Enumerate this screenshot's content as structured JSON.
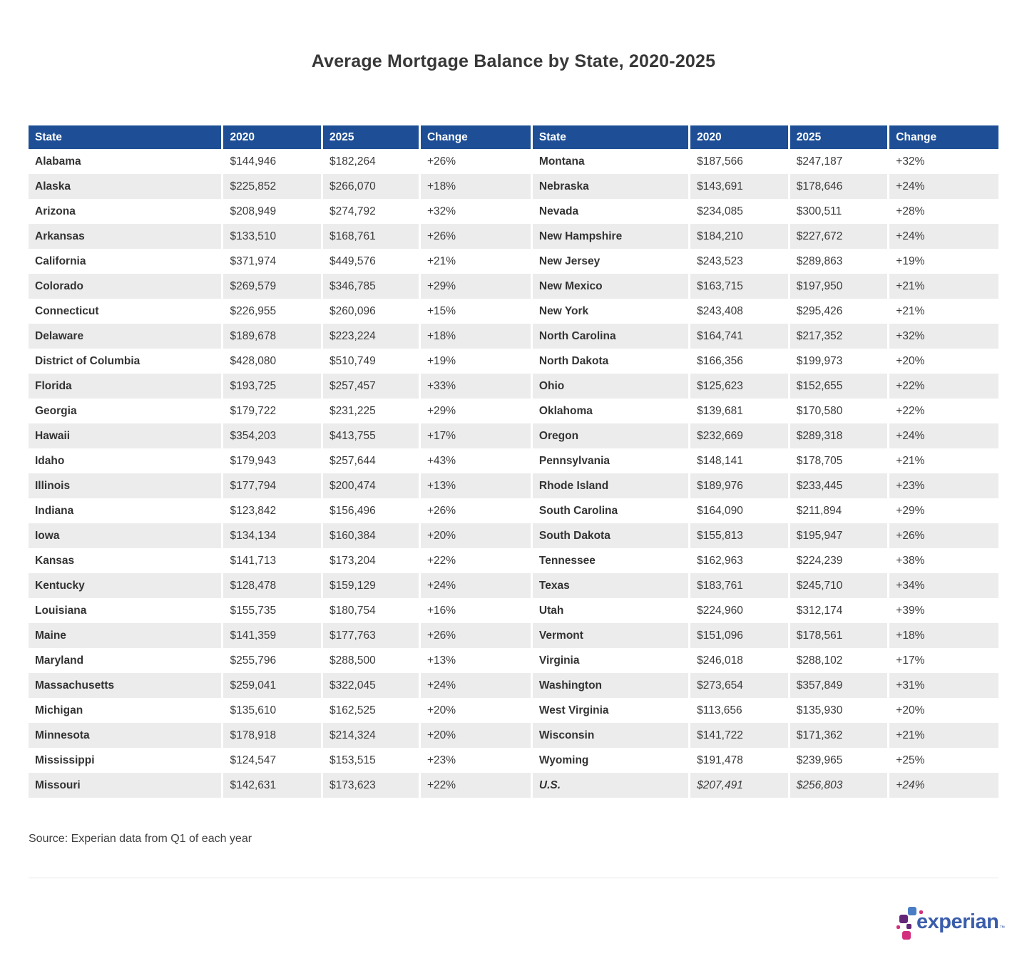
{
  "page_title": "Average Mortgage Balance by State, 2020-2025",
  "source_note": "Source: Experian data from Q1 of each year",
  "emphasis_row": "U.S.",
  "logo": {
    "wordmark": "experian",
    "trademark": "™"
  },
  "colors": {
    "header_blue": "#1e4f96",
    "stripe_gray": "#ececec",
    "text_dark": "#333333",
    "divider_gray": "#e7e7e7",
    "logo_word_blue": "#3a5dab",
    "logo_light_blue": "#4a7dc4",
    "logo_purple": "#632678",
    "logo_magenta": "#d2307c"
  },
  "chart_data": {
    "type": "table",
    "title": "Average Mortgage Balance by State, 2020-2025",
    "columns": [
      "State",
      "2020",
      "2025",
      "Change"
    ],
    "layout": "two side-by-side column groups, 26 rows each, alternating white/gray row stripes, blue header row",
    "value_format": "USD with thousands separators; Change as signed percent",
    "rows": [
      [
        "Alabama",
        144946,
        182264,
        "+26%"
      ],
      [
        "Alaska",
        225852,
        266070,
        "+18%"
      ],
      [
        "Arizona",
        208949,
        274792,
        "+32%"
      ],
      [
        "Arkansas",
        133510,
        168761,
        "+26%"
      ],
      [
        "California",
        371974,
        449576,
        "+21%"
      ],
      [
        "Colorado",
        269579,
        346785,
        "+29%"
      ],
      [
        "Connecticut",
        226955,
        260096,
        "+15%"
      ],
      [
        "Delaware",
        189678,
        223224,
        "+18%"
      ],
      [
        "District of Columbia",
        428080,
        510749,
        "+19%"
      ],
      [
        "Florida",
        193725,
        257457,
        "+33%"
      ],
      [
        "Georgia",
        179722,
        231225,
        "+29%"
      ],
      [
        "Hawaii",
        354203,
        413755,
        "+17%"
      ],
      [
        "Idaho",
        179943,
        257644,
        "+43%"
      ],
      [
        "Illinois",
        177794,
        200474,
        "+13%"
      ],
      [
        "Indiana",
        123842,
        156496,
        "+26%"
      ],
      [
        "Iowa",
        134134,
        160384,
        "+20%"
      ],
      [
        "Kansas",
        141713,
        173204,
        "+22%"
      ],
      [
        "Kentucky",
        128478,
        159129,
        "+24%"
      ],
      [
        "Louisiana",
        155735,
        180754,
        "+16%"
      ],
      [
        "Maine",
        141359,
        177763,
        "+26%"
      ],
      [
        "Maryland",
        255796,
        288500,
        "+13%"
      ],
      [
        "Massachusetts",
        259041,
        322045,
        "+24%"
      ],
      [
        "Michigan",
        135610,
        162525,
        "+20%"
      ],
      [
        "Minnesota",
        178918,
        214324,
        "+20%"
      ],
      [
        "Mississippi",
        124547,
        153515,
        "+23%"
      ],
      [
        "Missouri",
        142631,
        173623,
        "+22%"
      ],
      [
        "Montana",
        187566,
        247187,
        "+32%"
      ],
      [
        "Nebraska",
        143691,
        178646,
        "+24%"
      ],
      [
        "Nevada",
        234085,
        300511,
        "+28%"
      ],
      [
        "New Hampshire",
        184210,
        227672,
        "+24%"
      ],
      [
        "New Jersey",
        243523,
        289863,
        "+19%"
      ],
      [
        "New Mexico",
        163715,
        197950,
        "+21%"
      ],
      [
        "New York",
        243408,
        295426,
        "+21%"
      ],
      [
        "North Carolina",
        164741,
        217352,
        "+32%"
      ],
      [
        "North Dakota",
        166356,
        199973,
        "+20%"
      ],
      [
        "Ohio",
        125623,
        152655,
        "+22%"
      ],
      [
        "Oklahoma",
        139681,
        170580,
        "+22%"
      ],
      [
        "Oregon",
        232669,
        289318,
        "+24%"
      ],
      [
        "Pennsylvania",
        148141,
        178705,
        "+21%"
      ],
      [
        "Rhode Island",
        189976,
        233445,
        "+23%"
      ],
      [
        "South Carolina",
        164090,
        211894,
        "+29%"
      ],
      [
        "South Dakota",
        155813,
        195947,
        "+26%"
      ],
      [
        "Tennessee",
        162963,
        224239,
        "+38%"
      ],
      [
        "Texas",
        183761,
        245710,
        "+34%"
      ],
      [
        "Utah",
        224960,
        312174,
        "+39%"
      ],
      [
        "Vermont",
        151096,
        178561,
        "+18%"
      ],
      [
        "Virginia",
        246018,
        288102,
        "+17%"
      ],
      [
        "Washington",
        273654,
        357849,
        "+31%"
      ],
      [
        "West Virginia",
        113656,
        135930,
        "+20%"
      ],
      [
        "Wisconsin",
        141722,
        171362,
        "+21%"
      ],
      [
        "Wyoming",
        191478,
        239965,
        "+25%"
      ],
      [
        "U.S.",
        207491,
        256803,
        "+24%"
      ]
    ]
  }
}
